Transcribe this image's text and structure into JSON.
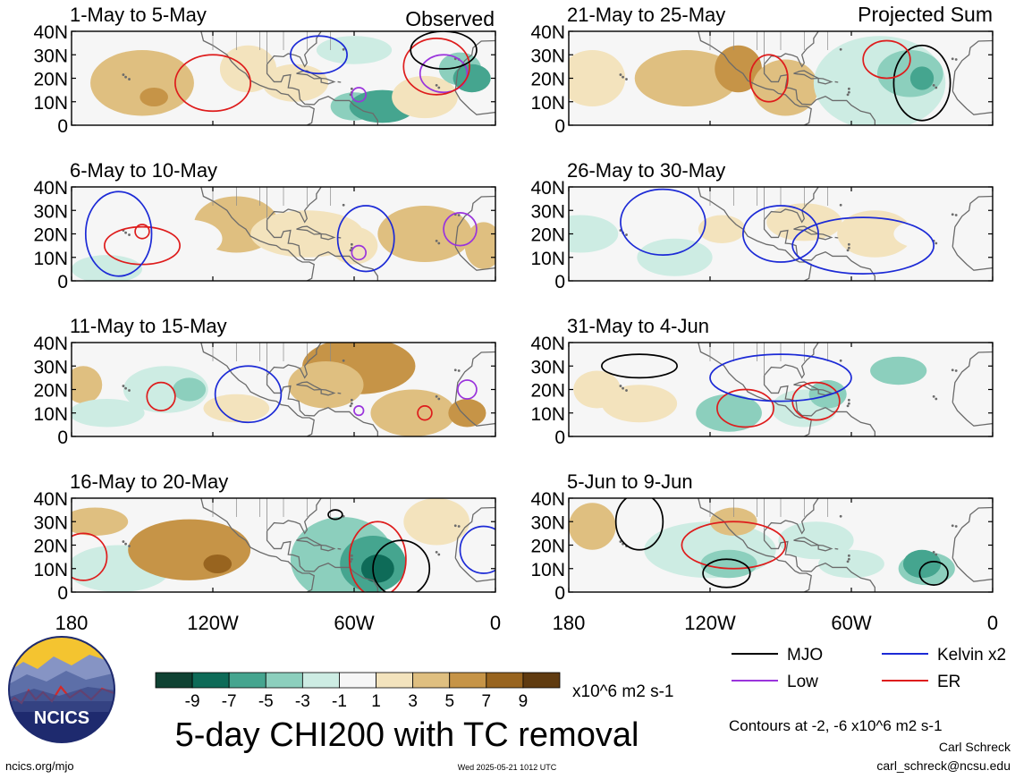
{
  "chart_data": {
    "type": "heatmap",
    "variable_title": "5-day CHI200 with TC removal",
    "units": "x10^6 m2 s-1",
    "contour_note": "Contours at -2, -6 x10^6 m2 s-1",
    "x_axis": {
      "ticks": [
        "180",
        "120W",
        "60W",
        "0"
      ],
      "range_deg_east": [
        -180,
        0
      ]
    },
    "y_axis": {
      "ticks": [
        "0",
        "10N",
        "20N",
        "30N",
        "40N"
      ],
      "range_deg_north": [
        0,
        40
      ]
    },
    "columns": [
      {
        "heading": "Observed",
        "panels": [
          "1-May to 5-May",
          "6-May to 10-May",
          "11-May to 15-May",
          "16-May to 20-May"
        ]
      },
      {
        "heading": "Projected Sum",
        "panels": [
          "21-May to 25-May",
          "26-May to 30-May",
          "31-May to 4-Jun",
          "5-Jun to 9-Jun"
        ]
      }
    ],
    "colorbar": {
      "labels": [
        "-9",
        "-7",
        "-5",
        "-3",
        "-1",
        "1",
        "3",
        "5",
        "7",
        "9"
      ],
      "colors": [
        "#0f4233",
        "#0e6b58",
        "#45a58f",
        "#8ccfbd",
        "#cdece3",
        "#f6f6f6",
        "#f3e3bd",
        "#dfbf80",
        "#c69447",
        "#98641f",
        "#603b10"
      ]
    },
    "legend": [
      {
        "label": "MJO",
        "color": "#000000"
      },
      {
        "label": "Kelvin x2",
        "color": "#1c2ad6"
      },
      {
        "label": "Low",
        "color": "#9a34dc"
      },
      {
        "label": "ER",
        "color": "#de1c1c"
      }
    ]
  },
  "footer": {
    "website": "ncics.org/mjo",
    "timestamp": "Wed 2025-05-21 1012 UTC",
    "author": "Carl Schreck",
    "email": "carl_schreck@ncsu.edu"
  },
  "logo": {
    "text": "NCICS",
    "colors": {
      "navy": "#1e2a6e",
      "gold": "#f4c430",
      "slate": "#7f8fb8",
      "red": "#d22a2a"
    }
  }
}
